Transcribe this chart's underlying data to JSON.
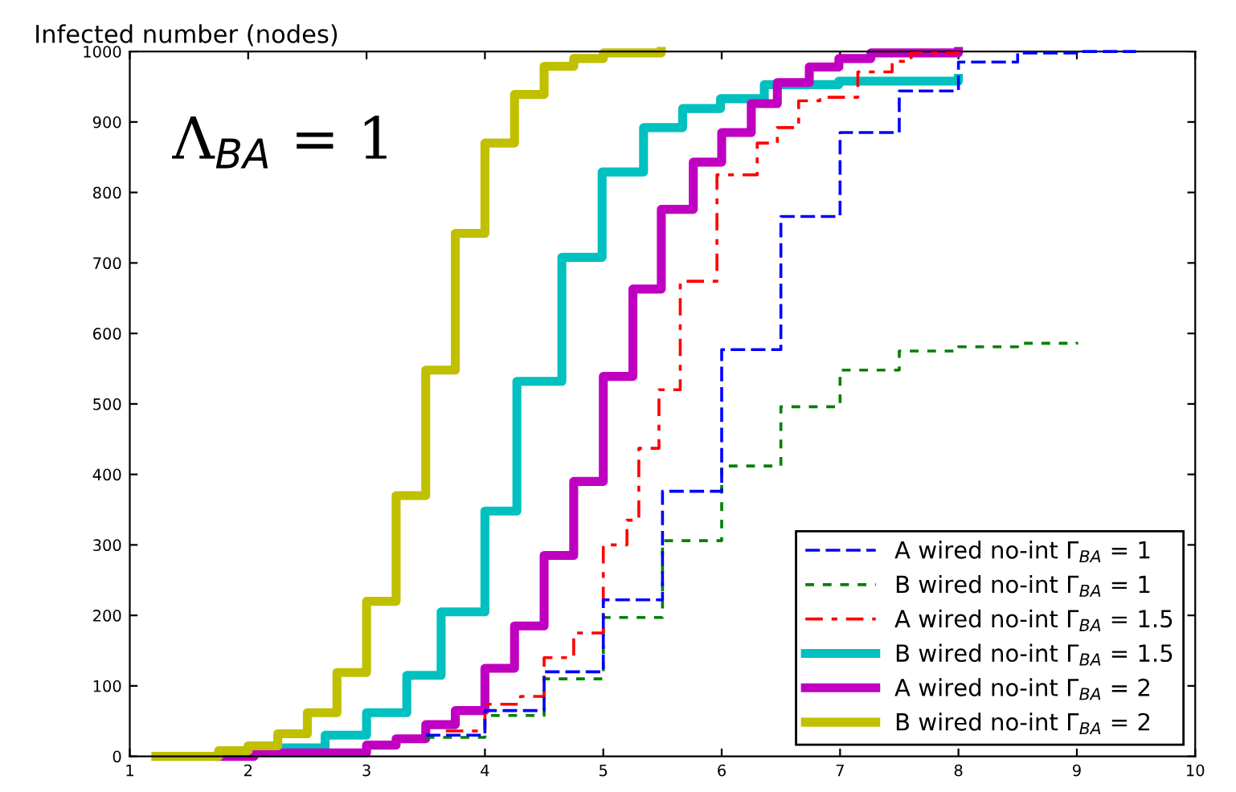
{
  "chart_data": {
    "type": "step",
    "ylabel": "Infected number (nodes)",
    "annotations": [
      "Λ$_{BA}$ = 1"
    ],
    "xlim": [
      1,
      10
    ],
    "ylim": [
      0,
      1000
    ],
    "xticks": [
      1,
      2,
      3,
      4,
      5,
      6,
      7,
      8,
      9,
      10
    ],
    "yticks": [
      0,
      100,
      200,
      300,
      400,
      500,
      600,
      700,
      800,
      900,
      1000
    ],
    "grid": false,
    "legend": "bottom right",
    "series": [
      {
        "name": "A wired no-int Γ$_{BA}$ = 1",
        "color": "#0000ff",
        "line_style": "dashed",
        "x": [
          3.5,
          4.0,
          4.5,
          5.0,
          5.5,
          6.0,
          6.5,
          7.0,
          7.5,
          8.0,
          8.5,
          9.0,
          9.5
        ],
        "values": [
          30,
          65,
          120,
          222,
          376,
          577,
          766,
          885,
          944,
          985,
          998,
          1000,
          1000
        ]
      },
      {
        "name": "B wired no-int Γ$_{BA}$ = 1",
        "color": "#008000",
        "line_style": "dotted",
        "x": [
          3.5,
          4.0,
          4.5,
          5.0,
          5.5,
          6.0,
          6.5,
          7.0,
          7.5,
          8.0,
          8.5,
          9.0
        ],
        "values": [
          27,
          58,
          110,
          197,
          306,
          412,
          496,
          548,
          575,
          581,
          586,
          588
        ]
      },
      {
        "name": "A wired no-int Γ$_{BA}$ = 1.5",
        "color": "#ff0000",
        "line_style": "dashdot",
        "x": [
          3.67,
          4.0,
          4.3,
          4.5,
          4.75,
          5.0,
          5.2,
          5.3,
          5.47,
          5.65,
          5.96,
          6.3,
          6.47,
          6.65,
          6.83,
          7.15,
          7.44,
          7.6,
          8.0
        ],
        "values": [
          36,
          74,
          85,
          140,
          175,
          300,
          335,
          437,
          520,
          674,
          825,
          870,
          892,
          930,
          935,
          971,
          986,
          998,
          1000
        ]
      },
      {
        "name": "B wired no-int Γ$_{BA}$ = 1.5",
        "color": "#00c0c0",
        "line_style": "solid",
        "x": [
          2.3,
          2.65,
          3.0,
          3.34,
          3.63,
          4.0,
          4.27,
          4.65,
          4.99,
          5.34,
          5.67,
          5.99,
          6.36,
          6.99,
          8.0
        ],
        "values": [
          12,
          30,
          62,
          115,
          205,
          348,
          532,
          708,
          829,
          892,
          919,
          933,
          953,
          958,
          962
        ]
      },
      {
        "name": "A wired no-int Γ$_{BA}$ = 2",
        "color": "#c000c0",
        "line_style": "solid",
        "x": [
          1.76,
          2.05,
          3.0,
          3.25,
          3.5,
          3.75,
          4.0,
          4.25,
          4.5,
          4.75,
          5.0,
          5.25,
          5.49,
          5.76,
          6.0,
          6.25,
          6.47,
          6.74,
          6.99,
          7.26,
          8.0
        ],
        "values": [
          0,
          5,
          16,
          25,
          45,
          65,
          125,
          185,
          285,
          390,
          539,
          663,
          776,
          843,
          885,
          926,
          956,
          978,
          990,
          998,
          1000
        ]
      },
      {
        "name": "B wired no-int Γ$_{BA}$ = 2",
        "color": "#c0c000",
        "line_style": "solid",
        "x": [
          1.22,
          1.75,
          2.0,
          2.25,
          2.5,
          2.75,
          3.0,
          3.25,
          3.5,
          3.75,
          4.0,
          4.25,
          4.5,
          4.75,
          5.0,
          5.49
        ],
        "values": [
          0,
          8,
          15,
          32,
          62,
          119,
          220,
          370,
          548,
          742,
          870,
          939,
          979,
          990,
          998,
          1000
        ]
      }
    ]
  }
}
